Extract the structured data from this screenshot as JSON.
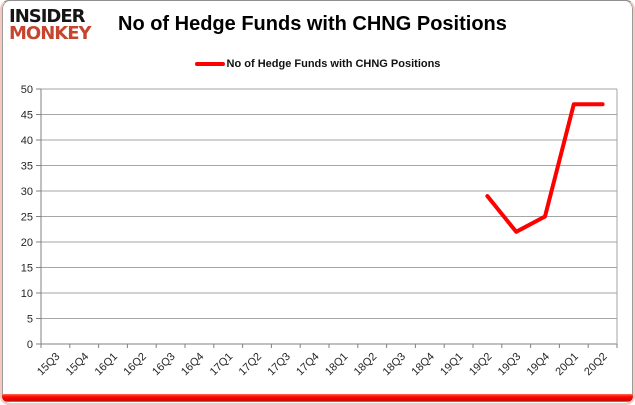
{
  "brand": {
    "line1": "INSIDER",
    "line2": "MONKEY",
    "line1_color": "#151515",
    "line2_color": "#c5452f"
  },
  "header": {
    "title": "No of Hedge Funds with CHNG Positions"
  },
  "legend": {
    "label": "No of Hedge Funds with CHNG Positions",
    "marker_color": "#ff0000"
  },
  "chart_data": {
    "type": "line",
    "title": "No of Hedge Funds with CHNG Positions",
    "categories": [
      "15Q3",
      "15Q4",
      "16Q1",
      "16Q2",
      "16Q3",
      "16Q4",
      "17Q1",
      "17Q2",
      "17Q3",
      "17Q4",
      "18Q1",
      "18Q2",
      "18Q3",
      "18Q4",
      "19Q1",
      "19Q2",
      "19Q3",
      "19Q4",
      "20Q1",
      "20Q2"
    ],
    "series": [
      {
        "name": "No of Hedge Funds with CHNG Positions",
        "color": "#ff0000",
        "values": [
          null,
          null,
          null,
          null,
          null,
          null,
          null,
          null,
          null,
          null,
          null,
          null,
          null,
          null,
          null,
          29,
          22,
          25,
          47,
          47
        ]
      }
    ],
    "ylim": [
      0,
      50
    ],
    "ytick_step": 5,
    "grid": true,
    "legend_position": "top-center",
    "xlabel": "",
    "ylabel": "",
    "gridline_color": "#a6a6a6",
    "axis_color": "#808080",
    "tick_label_color": "#262626"
  }
}
